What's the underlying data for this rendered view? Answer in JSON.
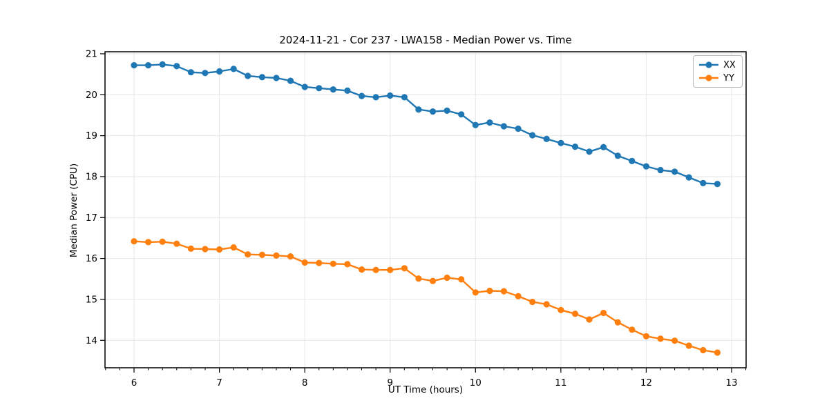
{
  "chart_data": {
    "type": "line",
    "title": "2024-11-21 - Cor 237 - LWA158 - Median Power vs. Time",
    "xlabel": "UT Time (hours)",
    "ylabel": "Median Power (CPU)",
    "x": [
      6.0,
      6.167,
      6.333,
      6.5,
      6.667,
      6.833,
      7.0,
      7.167,
      7.333,
      7.5,
      7.667,
      7.833,
      8.0,
      8.167,
      8.333,
      8.5,
      8.667,
      8.833,
      9.0,
      9.167,
      9.333,
      9.5,
      9.667,
      9.833,
      10.0,
      10.167,
      10.333,
      10.5,
      10.667,
      10.833,
      11.0,
      11.167,
      11.333,
      11.5,
      11.667,
      11.833,
      12.0,
      12.167,
      12.333,
      12.5,
      12.667,
      12.833
    ],
    "series": [
      {
        "name": "XX",
        "color": "#1f77b4",
        "values": [
          20.72,
          20.72,
          20.74,
          20.7,
          20.55,
          20.53,
          20.57,
          20.63,
          20.46,
          20.43,
          20.41,
          20.34,
          20.19,
          20.16,
          20.13,
          20.1,
          19.97,
          19.94,
          19.98,
          19.94,
          19.64,
          19.59,
          19.61,
          19.52,
          19.26,
          19.32,
          19.23,
          19.17,
          19.01,
          18.92,
          18.82,
          18.73,
          18.61,
          18.72,
          18.51,
          18.38,
          18.25,
          18.16,
          18.12,
          17.98,
          17.84,
          17.82
        ]
      },
      {
        "name": "YY",
        "color": "#ff7f0e",
        "values": [
          16.42,
          16.4,
          16.41,
          16.36,
          16.24,
          16.23,
          16.22,
          16.27,
          16.1,
          16.09,
          16.07,
          16.05,
          15.9,
          15.89,
          15.87,
          15.86,
          15.73,
          15.72,
          15.72,
          15.76,
          15.51,
          15.45,
          15.53,
          15.49,
          15.17,
          15.21,
          15.2,
          15.08,
          14.94,
          14.88,
          14.74,
          14.65,
          14.51,
          14.67,
          14.44,
          14.26,
          14.1,
          14.04,
          13.99,
          13.87,
          13.76,
          13.7
        ]
      }
    ],
    "xlim": [
      5.66,
      13.17
    ],
    "ylim": [
      13.33,
      21.05
    ],
    "xticks": [
      6,
      7,
      8,
      9,
      10,
      11,
      12,
      13
    ],
    "yticks": [
      14,
      15,
      16,
      17,
      18,
      19,
      20,
      21
    ],
    "x_minor_step": 0.16667,
    "grid": true,
    "grid_color": "#e6e6e6",
    "legend_position": "upper right"
  }
}
